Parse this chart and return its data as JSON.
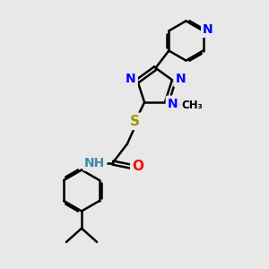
{
  "background_color": "#e8e8e8",
  "atom_colors": {
    "N": "#0000FF",
    "O": "#FF0000",
    "S": "#999900",
    "C": "#000000",
    "H": "#4488AA",
    "default": "#000000"
  },
  "bond_color": "#000000",
  "bond_width": 1.8,
  "font_size": 10,
  "figsize": [
    3.0,
    3.0
  ],
  "dpi": 100
}
